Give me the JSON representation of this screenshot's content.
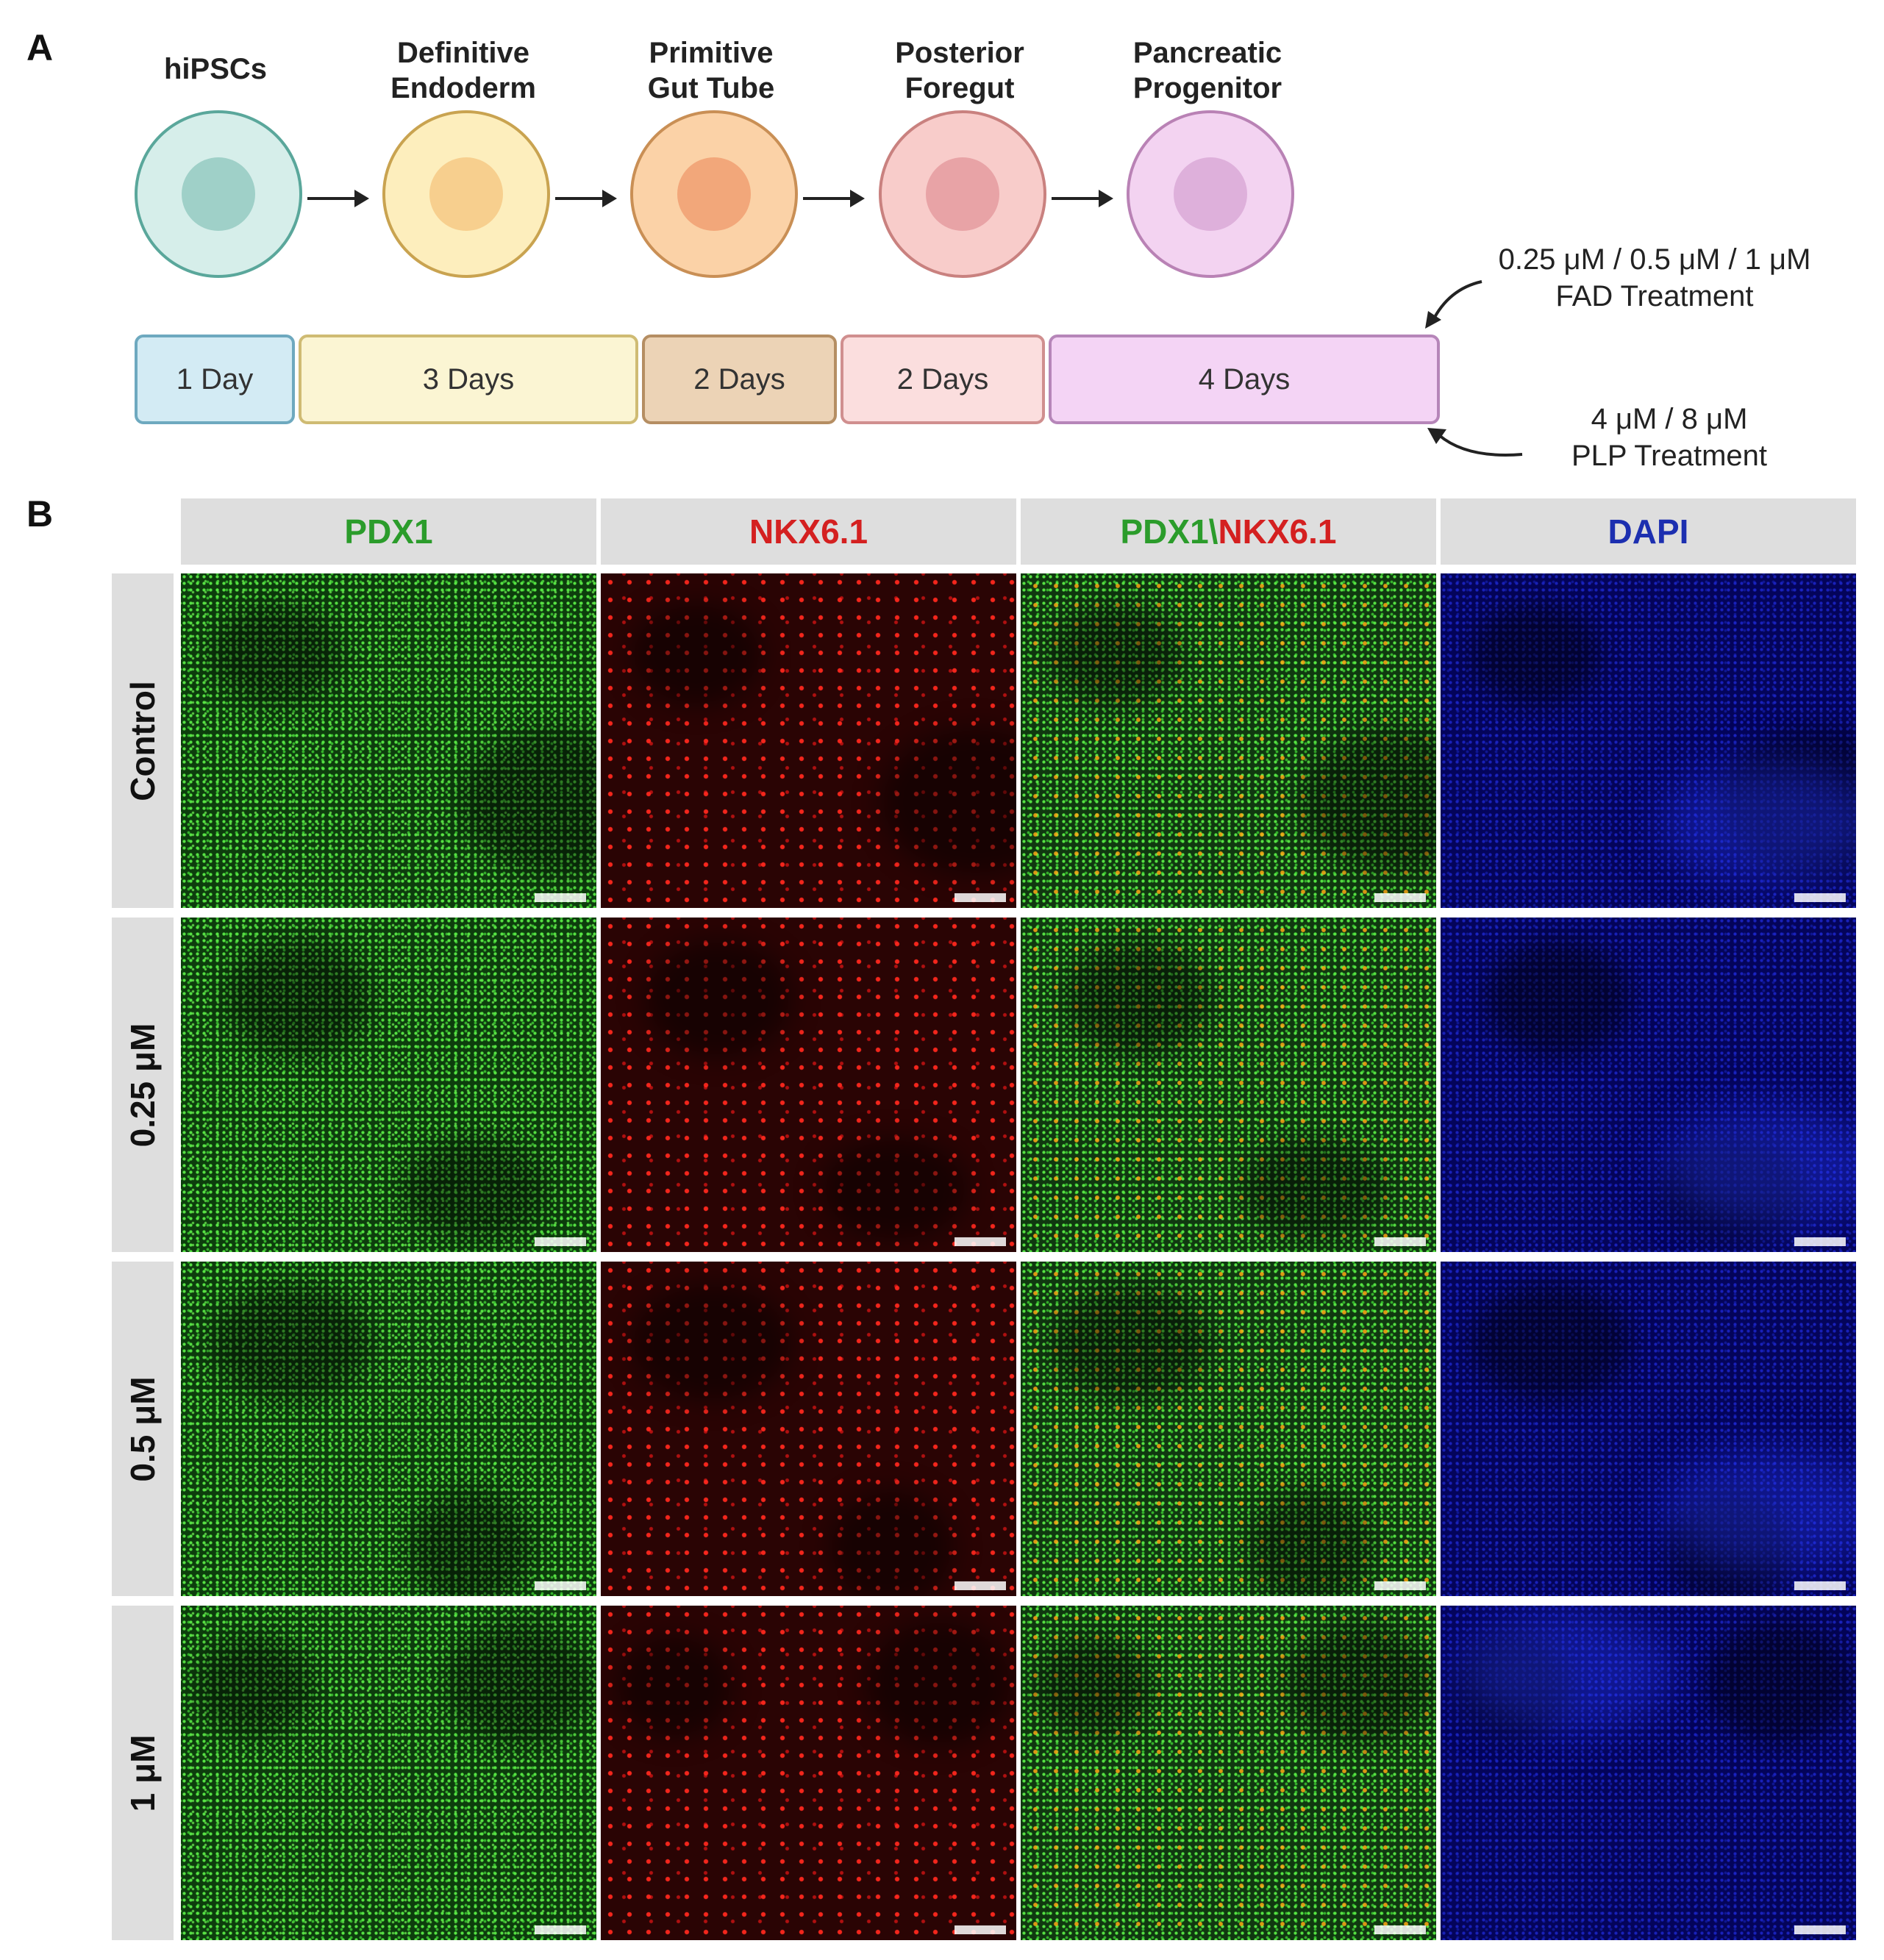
{
  "panel_a": {
    "letter": "A",
    "stages": [
      {
        "label_line1": "hiPSCs",
        "label_line2": "",
        "cell_color": "#d6eeea",
        "border_color": "#5aa79b",
        "nucleus_color": "#9fd0c8"
      },
      {
        "label_line1": "Definitive",
        "label_line2": "Endoderm",
        "cell_color": "#fdeebd",
        "border_color": "#c9a350",
        "nucleus_color": "#f7cf8e"
      },
      {
        "label_line1": "Primitive",
        "label_line2": "Gut Tube",
        "cell_color": "#fbd2a7",
        "border_color": "#c98f55",
        "nucleus_color": "#f2a77a"
      },
      {
        "label_line1": "Posterior",
        "label_line2": "Foregut",
        "cell_color": "#f8ccca",
        "border_color": "#c9817f",
        "nucleus_color": "#e8a3a6"
      },
      {
        "label_line1": "Pancreatic",
        "label_line2": "Progenitor",
        "cell_color": "#f3d3f1",
        "border_color": "#b982b5",
        "nucleus_color": "#deb0db"
      }
    ],
    "timeline": [
      {
        "label": "1 Day",
        "fill": "#d3ebf4",
        "border": "#6ea9bf"
      },
      {
        "label": "3 Days",
        "fill": "#fbf5d3",
        "border": "#cfbb73"
      },
      {
        "label": "2 Days",
        "fill": "#ecd3b6",
        "border": "#b58e63"
      },
      {
        "label": "2 Days",
        "fill": "#fbdede",
        "border": "#d08f8f"
      },
      {
        "label": "4 Days",
        "fill": "#f4d4f5",
        "border": "#b686b9"
      }
    ],
    "fad_treatment": {
      "line1": "0.25 μM / 0.5 μM / 1 μM",
      "line2": "FAD Treatment"
    },
    "plp_treatment": {
      "line1": "4 μM / 8 μM",
      "line2": "PLP Treatment"
    }
  },
  "panel_b": {
    "letter": "B",
    "columns": {
      "pdx1": {
        "label": "PDX1",
        "color": "#2b9c2b"
      },
      "nkx": {
        "label": "NKX6.1",
        "color": "#d42020"
      },
      "merge_green": "PDX1",
      "merge_sep": "\\",
      "merge_red": "NKX6.1",
      "dapi": {
        "label": "DAPI",
        "color": "#1c2fb0"
      }
    },
    "rows": [
      "Control",
      "0.25 μM",
      "0.5 μM",
      "1 μM"
    ]
  }
}
